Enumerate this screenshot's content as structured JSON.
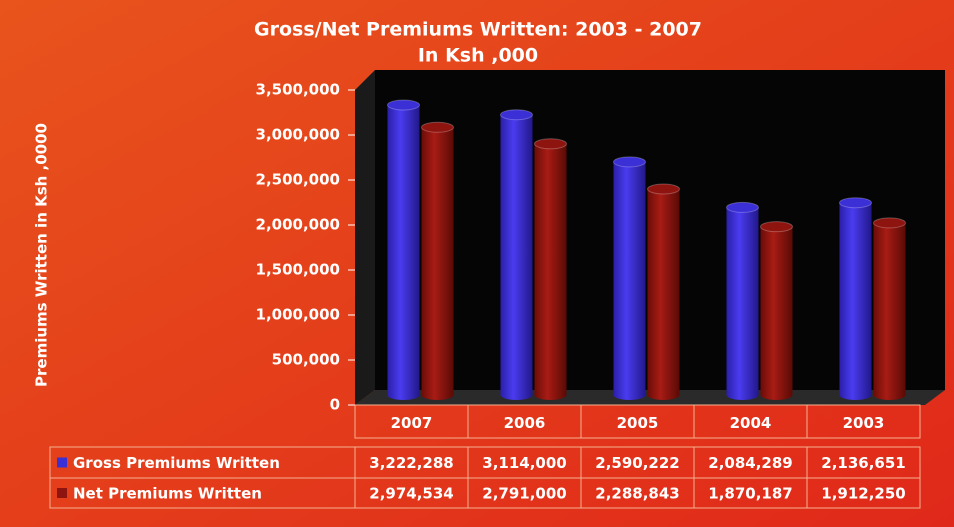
{
  "chart_data": {
    "type": "bar",
    "title": "Gross/Net Premiums Written:  2003 - 2007",
    "subtitle": "In Ksh ,000",
    "y_label": "Premiums Written in Ksh ,0000",
    "categories": [
      "2007",
      "2006",
      "2005",
      "2004",
      "2003"
    ],
    "series": [
      {
        "name": "Gross Premiums Written",
        "color": "#3b2fd6",
        "values": [
          3222288,
          3114000,
          2590222,
          2084289,
          2136651
        ],
        "value_labels": [
          "3,222,288",
          "3,114,000",
          "2,590,222",
          "2,084,289",
          "2,136,651"
        ]
      },
      {
        "name": "Net Premiums Written",
        "color": "#8e1410",
        "values": [
          2974534,
          2791000,
          2288843,
          1870187,
          1912250
        ],
        "value_labels": [
          "2,974,534",
          "2,791,000",
          "2,288,843",
          "1,870,187",
          "1,912,250"
        ]
      }
    ],
    "ylim": [
      0,
      3500000
    ],
    "yticks": [
      0,
      {
        "value": 500000,
        "label": "500,000"
      },
      {
        "value": 1000000,
        "label": "1,000,000"
      },
      {
        "value": 1500000,
        "label": "1,500,000"
      },
      {
        "value": 2000000,
        "label": "2,000,000"
      },
      {
        "value": 2500000,
        "label": "2,500,000"
      },
      {
        "value": 3000000,
        "label": "3,000,000"
      },
      {
        "value": 3500000,
        "label": "3,500,000"
      }
    ],
    "grid": false
  }
}
